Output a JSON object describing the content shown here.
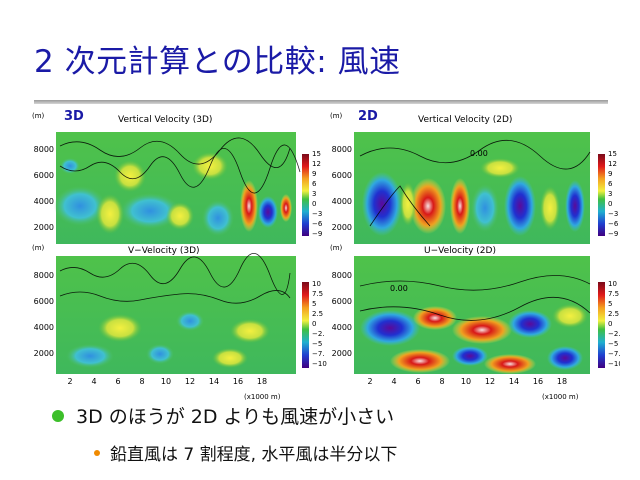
{
  "slide": {
    "title": "2 次元計算との比較: 風速",
    "bullet": "3D のほうが 2D よりも風速が小さい",
    "subbullet": "鉛直風は 7 割程度, 水平風は半分以下"
  },
  "figure": {
    "unit_m": "(m)",
    "xunit": "(x1000 m)",
    "yticks": [
      "8000",
      "6000",
      "4000",
      "2000"
    ],
    "xticks": [
      "2",
      "4",
      "6",
      "8",
      "10",
      "12",
      "14",
      "16",
      "18"
    ],
    "colorbar_top": [
      "15",
      "12",
      "9",
      "6",
      "3",
      "0",
      "−3",
      "−6",
      "−9"
    ],
    "colorbar_bottom": [
      "10",
      "7.5",
      "5",
      "2.5",
      "0",
      "−2.",
      "−5",
      "−7.",
      "−10"
    ],
    "panels": [
      {
        "tag": "3D",
        "title": "Vertical Velocity (3D)"
      },
      {
        "tag": "2D",
        "title": "Vertical Velocity (2D)"
      },
      {
        "tag": "",
        "title": "V−Velocity (3D)"
      },
      {
        "tag": "",
        "title": "U−Velocity (2D)"
      }
    ],
    "contour_label": "0.00"
  }
}
